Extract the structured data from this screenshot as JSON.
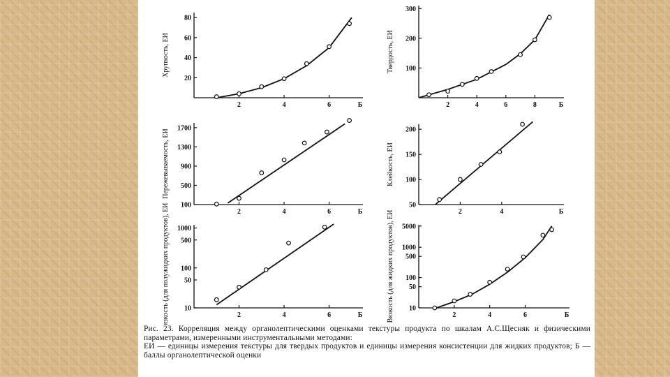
{
  "caption": {
    "line1": "Рис. 23. Корреляция между органолептическими оценками текстуры продукта по шкалам А.С.Щесняк и физическими параметрами, измеренными инструментальными методами:",
    "line2": "ЕИ — единицы измерения текстуры для твердых продуктов и единицы измерения консистенции для жидких продуктов; Б — баллы органолептической оценки"
  },
  "chart_data": [
    {
      "type": "line",
      "ylabel": "Хрупкость, ЕИ",
      "xlabel": "Б",
      "x_ticks": [
        "2",
        "4",
        "6"
      ],
      "y_ticks": [
        "20",
        "40",
        "60",
        "80"
      ],
      "xlim": [
        0,
        7.5
      ],
      "ylim": [
        0,
        85
      ],
      "y_scale": "linear",
      "points": [
        [
          1,
          1
        ],
        [
          2,
          4
        ],
        [
          3,
          11
        ],
        [
          4,
          19
        ],
        [
          5,
          34
        ],
        [
          6,
          51
        ],
        [
          6.9,
          74
        ]
      ],
      "curve": [
        [
          1,
          0
        ],
        [
          2,
          4
        ],
        [
          3,
          10
        ],
        [
          4,
          19
        ],
        [
          5,
          32
        ],
        [
          6,
          50
        ],
        [
          7,
          80
        ]
      ]
    },
    {
      "type": "line",
      "ylabel": "Твердость, ЕИ",
      "xlabel": "Б",
      "x_ticks": [
        "2",
        "4",
        "6",
        "8"
      ],
      "y_ticks": [
        "100",
        "200",
        "300"
      ],
      "xlim": [
        0,
        10
      ],
      "ylim": [
        0,
        310
      ],
      "y_scale": "linear",
      "points": [
        [
          0.7,
          10
        ],
        [
          2,
          22
        ],
        [
          3,
          45
        ],
        [
          4,
          65
        ],
        [
          5,
          88
        ],
        [
          7,
          145
        ],
        [
          8,
          195
        ],
        [
          9,
          270
        ]
      ],
      "curve": [
        [
          0,
          0
        ],
        [
          2,
          28
        ],
        [
          4,
          62
        ],
        [
          6,
          112
        ],
        [
          7,
          148
        ],
        [
          8,
          195
        ],
        [
          9,
          280
        ]
      ]
    },
    {
      "type": "line",
      "ylabel": "Пережевываемость, ЕИ",
      "xlabel": "Б",
      "x_ticks": [
        "2",
        "4",
        "6"
      ],
      "y_ticks": [
        "100",
        "500",
        "900",
        "1300",
        "1700"
      ],
      "xlim": [
        0,
        7.5
      ],
      "ylim": [
        100,
        1800
      ],
      "y_scale": "linear",
      "points": [
        [
          1,
          110
        ],
        [
          2,
          230
        ],
        [
          3,
          760
        ],
        [
          4,
          1030
        ],
        [
          4.9,
          1380
        ],
        [
          5.9,
          1610
        ],
        [
          6.9,
          1850
        ]
      ],
      "curve": [
        [
          1.5,
          130
        ],
        [
          6.7,
          1780
        ]
      ]
    },
    {
      "type": "line",
      "ylabel": "Клейкость, ЕИ",
      "xlabel": "Б",
      "x_ticks": [
        "2",
        "4"
      ],
      "y_ticks": [
        "50",
        "100",
        "150",
        "200"
      ],
      "xlim": [
        0,
        7
      ],
      "ylim": [
        50,
        210
      ],
      "y_scale": "linear",
      "points": [
        [
          1,
          60
        ],
        [
          2,
          100
        ],
        [
          3,
          130
        ],
        [
          3.9,
          155
        ],
        [
          5,
          210
        ]
      ],
      "curve": [
        [
          0.8,
          50
        ],
        [
          5.5,
          215
        ]
      ]
    },
    {
      "type": "line",
      "ylabel": "Вязкость (для полужидких продуктов), ЕИ",
      "xlabel": "Б",
      "x_ticks": [
        "2",
        "4",
        "6"
      ],
      "y_ticks": [
        "10",
        "50",
        "100",
        "500",
        "1000"
      ],
      "xlim": [
        0,
        7.5
      ],
      "ylim": [
        10,
        1200
      ],
      "y_scale": "log",
      "points": [
        [
          1,
          16
        ],
        [
          2,
          33
        ],
        [
          3.2,
          90
        ],
        [
          4.2,
          420
        ],
        [
          5.8,
          1050
        ]
      ],
      "curve": [
        [
          1,
          12
        ],
        [
          6.2,
          1250
        ]
      ]
    },
    {
      "type": "line",
      "ylabel": "Вязкость (для жидких продуктов), ЕИ",
      "xlabel": "Б",
      "x_ticks": [
        "2",
        "4",
        "6"
      ],
      "y_ticks": [
        "10",
        "50",
        "100",
        "500",
        "1000",
        "5000"
      ],
      "xlim": [
        0,
        8.5
      ],
      "ylim": [
        10,
        5500
      ],
      "y_scale": "log",
      "points": [
        [
          0.9,
          10
        ],
        [
          2,
          17
        ],
        [
          2.9,
          28
        ],
        [
          4,
          70
        ],
        [
          5,
          190
        ],
        [
          5.9,
          480
        ],
        [
          7,
          2500
        ],
        [
          7.5,
          3800
        ]
      ],
      "curve": [
        [
          1,
          10
        ],
        [
          2,
          16
        ],
        [
          3,
          28
        ],
        [
          4,
          60
        ],
        [
          5,
          150
        ],
        [
          6,
          450
        ],
        [
          7,
          1800
        ],
        [
          7.5,
          5000
        ]
      ]
    }
  ]
}
